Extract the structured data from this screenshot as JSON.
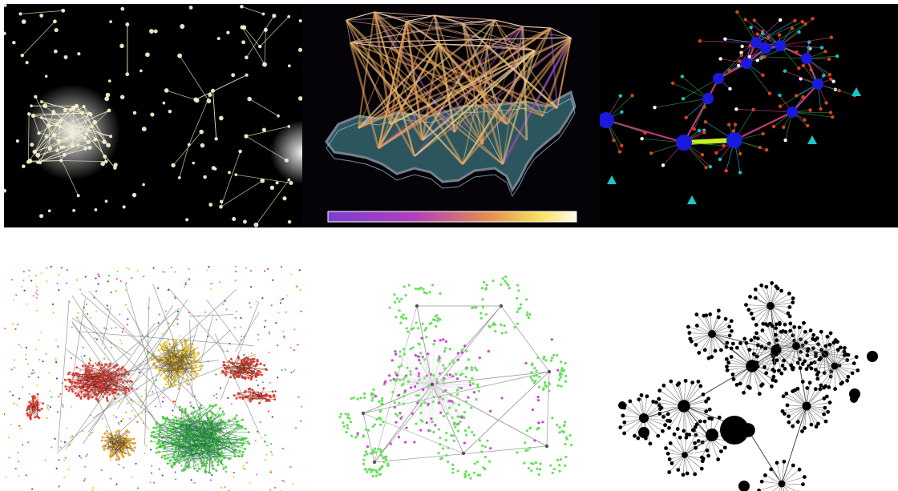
{
  "tiles": [
    {
      "icon": "star-constellation-network-image"
    },
    {
      "icon": "usa-3d-arc-network-image"
    },
    {
      "icon": "3d-node-link-graph-image"
    },
    {
      "icon": "colored-cluster-network-image"
    },
    {
      "icon": "green-magenta-radial-network-image"
    },
    {
      "icon": "black-tree-network-image"
    }
  ],
  "colors": {
    "bg_dark": "#000000",
    "glow_node": "#f2efc8",
    "arc_orange": "#e8a55a",
    "arc_purple": "#8e4fb7",
    "map_teal": "#4f98a4",
    "node_blue": "#1a1adc",
    "edge_magenta": "#c2367f",
    "edge_yellow_green": "#c8ee28",
    "node_red": "#e0401a",
    "node_green": "#66e05a",
    "node_magenta": "#d23ddc",
    "node_black": "#000000"
  }
}
